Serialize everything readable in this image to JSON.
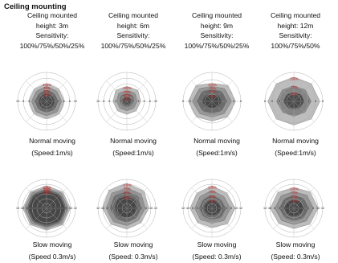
{
  "title": "Ceiling mounting",
  "columns": [
    {
      "line1": "Ceiling mounted",
      "line2": "height: 3m",
      "line3": "Sensitivity:",
      "line4": "100%/75%/50%/25%"
    },
    {
      "line1": "Ceiling mounted",
      "line2": "height: 6m",
      "line3": "Sensitivity:",
      "line4": "100%/75%/50%/25%"
    },
    {
      "line1": "Ceiling mounted",
      "line2": "height: 9m",
      "line3": "Sensitivity:",
      "line4": "100%/75%/50%/25%"
    },
    {
      "line1": "Ceiling mounted",
      "line2": "height: 12m",
      "line3": "Sensitivity:",
      "line4": "100%/75%/50%"
    }
  ],
  "rows": [
    {
      "caption1": "Normal moving",
      "caption2": "(Speed:1m/s)"
    },
    {
      "caption1": "Slow moving",
      "caption2": "(Speed 0.3m/s)"
    }
  ],
  "row2_caption2_alt": "(Speed: 0.3m/s)",
  "colors": {
    "ring_stroke": "#b0b0b0",
    "fill_dark": "#3a3a3a",
    "fill_light": "#9a9a9a",
    "label_red": "#d42020"
  },
  "plots": [
    {
      "row": 0,
      "col": 0,
      "ticks": [
        "10",
        "8",
        "6",
        "4",
        "2",
        "0",
        "2",
        "4",
        "6",
        "8",
        "10"
      ],
      "pct": [
        "100%",
        "75%",
        "50%",
        "25%"
      ],
      "layers": [
        [
          0.62,
          0.6,
          0.62,
          0.62,
          0.6,
          0.62,
          0.62,
          0.6
        ],
        [
          0.52,
          0.5,
          0.52,
          0.52,
          0.5,
          0.52,
          0.52,
          0.5
        ],
        [
          0.4,
          0.38,
          0.4,
          0.4,
          0.38,
          0.4,
          0.4,
          0.38
        ],
        [
          0.28,
          0.26,
          0.28,
          0.28,
          0.26,
          0.28,
          0.28,
          0.26
        ]
      ]
    },
    {
      "row": 0,
      "col": 1,
      "ticks": [
        "10",
        "8",
        "6",
        "4",
        "2",
        "0",
        "2",
        "4",
        "6",
        "8",
        "10"
      ],
      "pct": [
        "100%",
        "75%",
        "50%",
        "25%"
      ],
      "layers": [
        [
          0.52,
          0.54,
          0.48,
          0.46,
          0.45,
          0.46,
          0.48,
          0.54
        ],
        [
          0.38,
          0.4,
          0.36,
          0.34,
          0.33,
          0.34,
          0.36,
          0.4
        ],
        [
          0.26,
          0.28,
          0.24,
          0.22,
          0.22,
          0.22,
          0.24,
          0.28
        ],
        [
          0.14,
          0.16,
          0.14,
          0.12,
          0.12,
          0.12,
          0.14,
          0.16
        ]
      ]
    },
    {
      "row": 0,
      "col": 2,
      "ticks": [
        "8",
        "6",
        "4",
        "2",
        "0",
        "2",
        "4",
        "6",
        "8"
      ],
      "pct": [
        "100%",
        "75%",
        "50%",
        "25%"
      ],
      "layers": [
        [
          0.62,
          0.78,
          0.82,
          0.76,
          0.68,
          0.76,
          0.82,
          0.78
        ],
        [
          0.52,
          0.62,
          0.68,
          0.6,
          0.54,
          0.6,
          0.68,
          0.62
        ],
        [
          0.4,
          0.48,
          0.52,
          0.46,
          0.4,
          0.46,
          0.52,
          0.48
        ],
        [
          0.24,
          0.3,
          0.34,
          0.28,
          0.26,
          0.28,
          0.34,
          0.3
        ]
      ]
    },
    {
      "row": 0,
      "col": 3,
      "ticks": [
        "8",
        "6",
        "4",
        "2",
        "0",
        "2",
        "4",
        "6",
        "8"
      ],
      "pct": [
        "100%",
        "75%",
        "50%"
      ],
      "layers": [
        [
          0.84,
          0.86,
          0.9,
          0.86,
          0.82,
          0.86,
          0.9,
          0.86
        ],
        [
          0.54,
          0.56,
          0.6,
          0.54,
          0.52,
          0.54,
          0.6,
          0.56
        ],
        [
          0.3,
          0.34,
          0.36,
          0.3,
          0.28,
          0.3,
          0.36,
          0.34
        ]
      ]
    },
    {
      "row": 1,
      "col": 0,
      "ticks": [
        "12",
        "10",
        "8",
        "6",
        "4",
        "2",
        "0",
        "2",
        "4",
        "6",
        "8",
        "10",
        "12"
      ],
      "pct": [
        "100%",
        "75%",
        "50%",
        "25%"
      ],
      "layers": [
        [
          0.78,
          0.8,
          0.82,
          0.8,
          0.76,
          0.8,
          0.82,
          0.8
        ],
        [
          0.72,
          0.74,
          0.76,
          0.74,
          0.7,
          0.74,
          0.76,
          0.74
        ],
        [
          0.66,
          0.68,
          0.7,
          0.68,
          0.64,
          0.68,
          0.7,
          0.68
        ],
        [
          0.6,
          0.62,
          0.64,
          0.62,
          0.58,
          0.62,
          0.64,
          0.62
        ]
      ]
    },
    {
      "row": 1,
      "col": 1,
      "ticks": [
        "12",
        "10",
        "8",
        "6",
        "4",
        "2",
        "0",
        "2",
        "4",
        "6",
        "8",
        "10",
        "12"
      ],
      "pct": [
        "100%",
        "75%",
        "50%",
        "25%"
      ],
      "layers": [
        [
          0.86,
          0.84,
          0.76,
          0.7,
          0.72,
          0.78,
          0.84,
          0.88
        ],
        [
          0.72,
          0.7,
          0.64,
          0.58,
          0.6,
          0.66,
          0.72,
          0.74
        ],
        [
          0.58,
          0.56,
          0.5,
          0.46,
          0.48,
          0.52,
          0.58,
          0.6
        ],
        [
          0.42,
          0.4,
          0.36,
          0.32,
          0.34,
          0.38,
          0.42,
          0.44
        ]
      ]
    },
    {
      "row": 1,
      "col": 2,
      "ticks": [
        "12",
        "10",
        "8",
        "6",
        "4",
        "2",
        "0",
        "2",
        "4",
        "6",
        "8",
        "10",
        "12"
      ],
      "pct": [
        "100%",
        "75%",
        "50%",
        "25%"
      ],
      "layers": [
        [
          0.78,
          0.74,
          0.8,
          0.76,
          0.66,
          0.7,
          0.76,
          0.74
        ],
        [
          0.62,
          0.58,
          0.64,
          0.6,
          0.52,
          0.56,
          0.6,
          0.58
        ],
        [
          0.46,
          0.42,
          0.48,
          0.44,
          0.38,
          0.4,
          0.44,
          0.42
        ],
        [
          0.3,
          0.28,
          0.32,
          0.28,
          0.24,
          0.26,
          0.28,
          0.28
        ]
      ]
    },
    {
      "row": 1,
      "col": 3,
      "ticks": [
        "12",
        "10",
        "8",
        "6",
        "4",
        "2",
        "0",
        "2",
        "4",
        "6",
        "8",
        "10",
        "12"
      ],
      "pct": [
        "100%",
        "75%",
        "50%",
        "25%"
      ],
      "layers": [
        [
          0.72,
          0.8,
          0.84,
          0.78,
          0.7,
          0.74,
          0.82,
          0.78
        ],
        [
          0.58,
          0.64,
          0.68,
          0.62,
          0.56,
          0.6,
          0.66,
          0.62
        ],
        [
          0.44,
          0.48,
          0.52,
          0.46,
          0.42,
          0.44,
          0.5,
          0.46
        ],
        [
          0.3,
          0.32,
          0.36,
          0.3,
          0.28,
          0.3,
          0.34,
          0.3
        ]
      ]
    }
  ]
}
